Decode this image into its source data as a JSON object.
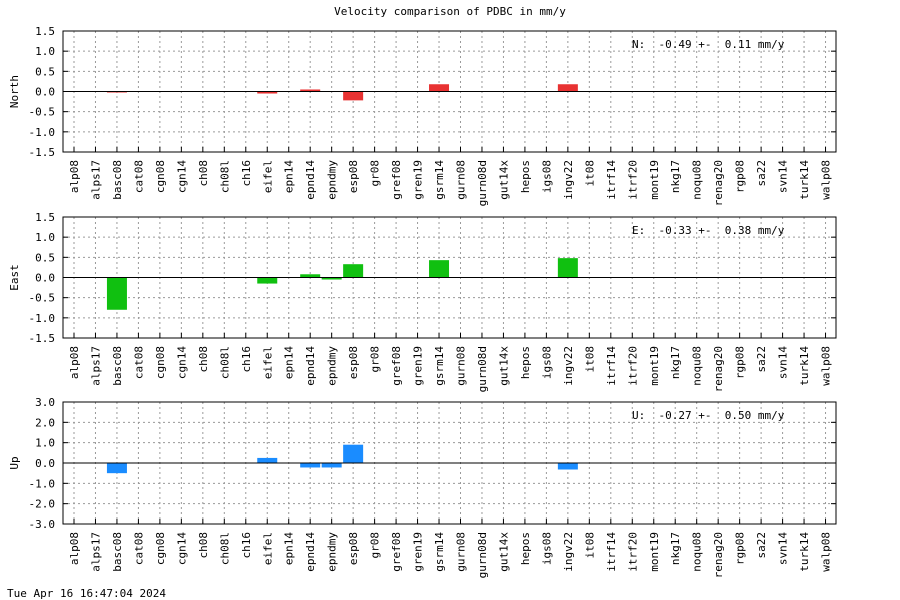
{
  "title": "Velocity comparison of PDBC in mm/y",
  "timestamp": "Tue Apr 16 16:47:04 2024",
  "chart_data": {
    "type": "bar",
    "title": "Velocity comparison of PDBC in mm/y",
    "grid": true,
    "categories": [
      "alp08",
      "alps17",
      "basc08",
      "cat08",
      "cgn08",
      "cgn14",
      "ch08",
      "ch08l",
      "ch16",
      "eifel",
      "epn14",
      "epnd14",
      "epndmy",
      "esp08",
      "gr08",
      "gref08",
      "gren19",
      "gsrm14",
      "gurn08",
      "gurn08d",
      "gut14x",
      "hepos",
      "igs08",
      "ingv22",
      "it08",
      "itrf14",
      "itrf20",
      "mont19",
      "nkg17",
      "noqu08",
      "renag20",
      "rgp08",
      "sa22",
      "svn14",
      "turk14",
      "walp08"
    ],
    "panels": [
      {
        "ylabel": "North",
        "color": "#e83232",
        "ylim": [
          -1.5,
          1.5
        ],
        "yticks": [
          "1.5",
          "1.0",
          "0.5",
          "0.0",
          "-0.5",
          "-1.0",
          "-1.5"
        ],
        "annotation": "N:  -0.49 +-  0.11 mm/y",
        "values": [
          null,
          null,
          -0.02,
          null,
          null,
          null,
          null,
          null,
          null,
          -0.05,
          null,
          0.05,
          null,
          -0.22,
          null,
          null,
          null,
          0.18,
          null,
          null,
          null,
          null,
          null,
          0.18,
          null,
          null,
          null,
          null,
          null,
          null,
          null,
          null,
          null,
          null,
          null,
          null
        ]
      },
      {
        "ylabel": "East",
        "color": "#10c010",
        "ylim": [
          -1.5,
          1.5
        ],
        "yticks": [
          "1.5",
          "1.0",
          "0.5",
          "0.0",
          "-0.5",
          "-1.0",
          "-1.5"
        ],
        "annotation": "E:  -0.33 +-  0.38 mm/y",
        "values": [
          null,
          null,
          -0.8,
          null,
          null,
          null,
          null,
          null,
          null,
          -0.15,
          null,
          0.08,
          -0.05,
          0.33,
          null,
          null,
          null,
          0.43,
          null,
          null,
          null,
          null,
          null,
          0.48,
          null,
          null,
          null,
          null,
          null,
          null,
          null,
          null,
          null,
          null,
          null,
          null
        ]
      },
      {
        "ylabel": "Up",
        "color": "#1a8cff",
        "ylim": [
          -3.0,
          3.0
        ],
        "yticks": [
          "3.0",
          "2.0",
          "1.0",
          "0.0",
          "-1.0",
          "-2.0",
          "-3.0"
        ],
        "annotation": "U:  -0.27 +-  0.50 mm/y",
        "values": [
          null,
          null,
          -0.5,
          null,
          null,
          null,
          null,
          null,
          null,
          0.25,
          null,
          -0.22,
          -0.22,
          0.9,
          null,
          null,
          null,
          null,
          null,
          null,
          null,
          null,
          null,
          -0.32,
          null,
          null,
          null,
          null,
          null,
          null,
          null,
          null,
          null,
          null,
          null,
          null
        ]
      }
    ]
  }
}
